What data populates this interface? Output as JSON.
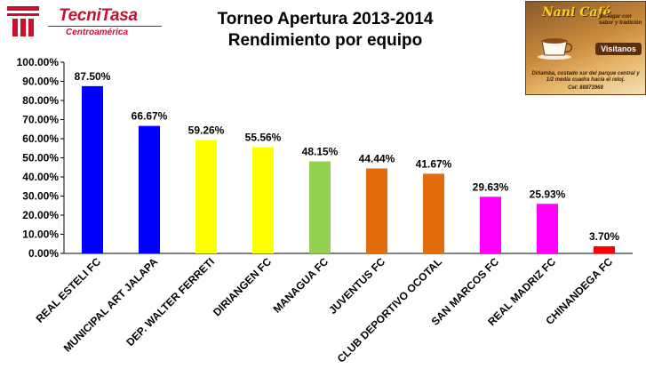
{
  "logo": {
    "name": "TecniTasa",
    "subtitle": "Centroamérica"
  },
  "ad": {
    "brand": "Nani Café",
    "tagline": "Un lugar con sabor y tradición",
    "badge": "Visítanos",
    "address": "Diriamba, costado sur del parque central y 1/2 media cuadra hacia el reloj.",
    "phone": "Cel: 88873968",
    "colors": {
      "primary": "#8a5a2b",
      "accent": "#f7d21e"
    }
  },
  "chart_data": {
    "type": "bar",
    "title": "Torneo Apertura 2013-2014",
    "subtitle": "Rendimiento por equipo",
    "xlabel": "",
    "ylabel": "",
    "ylim": [
      0,
      100
    ],
    "yticks": [
      "0.00%",
      "10.00%",
      "20.00%",
      "30.00%",
      "40.00%",
      "50.00%",
      "60.00%",
      "70.00%",
      "80.00%",
      "90.00%",
      "100.00%"
    ],
    "categories": [
      "REAL ESTELI FC",
      "MUNICIPAL ART JALAPA",
      "DEP. WALTER FERRETI",
      "DIRIANGEN FC",
      "MANAGUA FC",
      "JUVENTUS FC",
      "CLUB DEPORTIVO OCOTAL",
      "SAN MARCOS FC",
      "REAL MADRIZ FC",
      "CHINANDEGA FC"
    ],
    "values": [
      87.5,
      66.67,
      59.26,
      55.56,
      48.15,
      44.44,
      41.67,
      29.63,
      25.93,
      3.7
    ],
    "value_labels": [
      "87.50%",
      "66.67%",
      "59.26%",
      "55.56%",
      "48.15%",
      "44.44%",
      "41.67%",
      "29.63%",
      "25.93%",
      "3.70%"
    ],
    "colors": [
      "#0000ff",
      "#0000ff",
      "#ffff00",
      "#ffff00",
      "#92d050",
      "#e46c0a",
      "#e46c0a",
      "#ff00ff",
      "#ff00ff",
      "#ff0000"
    ],
    "grid": false,
    "legend": "none"
  }
}
